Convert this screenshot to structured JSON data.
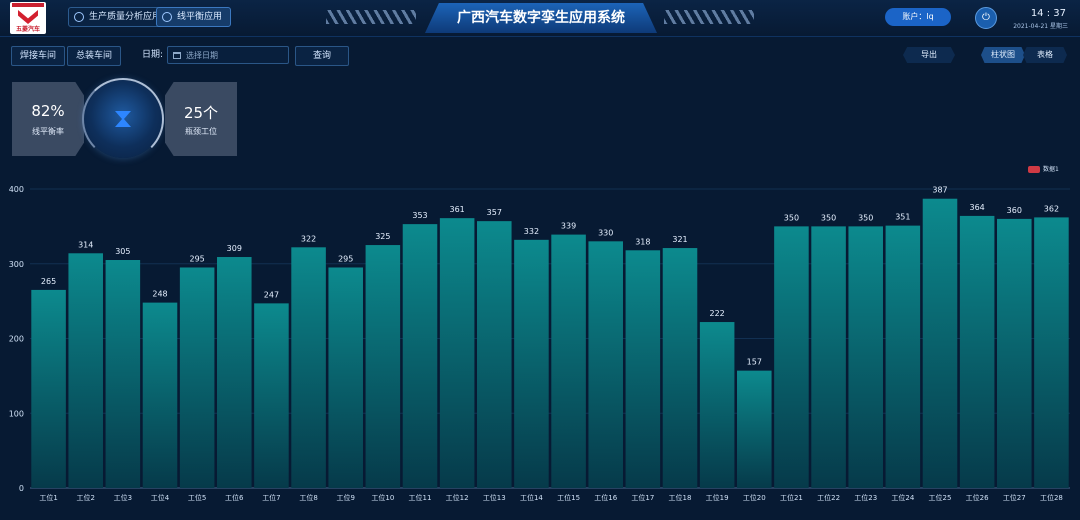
{
  "header": {
    "title": "广西汽车数字孪生应用系统",
    "logo_text": "五菱汽车",
    "nav": [
      "生产质量分析应用",
      "线平衡应用"
    ],
    "account_label": "账户：lq",
    "time": "14 : 37",
    "date": "2021-04-21 星期三"
  },
  "toolbar": {
    "btn_weld": "焊接车间",
    "btn_assembly": "总装车间",
    "date_label": "日期:",
    "date_placeholder": "选择日期",
    "query": "查询",
    "export": "导出",
    "view_bar": "柱状图",
    "view_table": "表格"
  },
  "kpi": {
    "balance_value": "82%",
    "balance_label": "线平衡率",
    "bottleneck_value": "25个",
    "bottleneck_label": "瓶颈工位"
  },
  "colors": {
    "bar_top": "#0c8a8e",
    "bar_bottom": "#063a4a",
    "legend": "#cf3a44"
  },
  "chart_data": {
    "type": "bar",
    "legend": "数据1",
    "ylim": [
      0,
      400
    ],
    "yticks": [
      0,
      100,
      200,
      300,
      400
    ],
    "categories": [
      "工位1",
      "工位2",
      "工位3",
      "工位4",
      "工位5",
      "工位6",
      "工位7",
      "工位8",
      "工位9",
      "工位10",
      "工位11",
      "工位12",
      "工位13",
      "工位14",
      "工位15",
      "工位16",
      "工位17",
      "工位18",
      "工位19",
      "工位20",
      "工位21",
      "工位22",
      "工位23",
      "工位24",
      "工位25",
      "工位26",
      "工位27",
      "工位28"
    ],
    "values": [
      265,
      314,
      305,
      248,
      295,
      309,
      247,
      322,
      295,
      325,
      353,
      361,
      357,
      332,
      339,
      330,
      318,
      321,
      222,
      157,
      350,
      350,
      350,
      351,
      387,
      364,
      360,
      362
    ]
  }
}
